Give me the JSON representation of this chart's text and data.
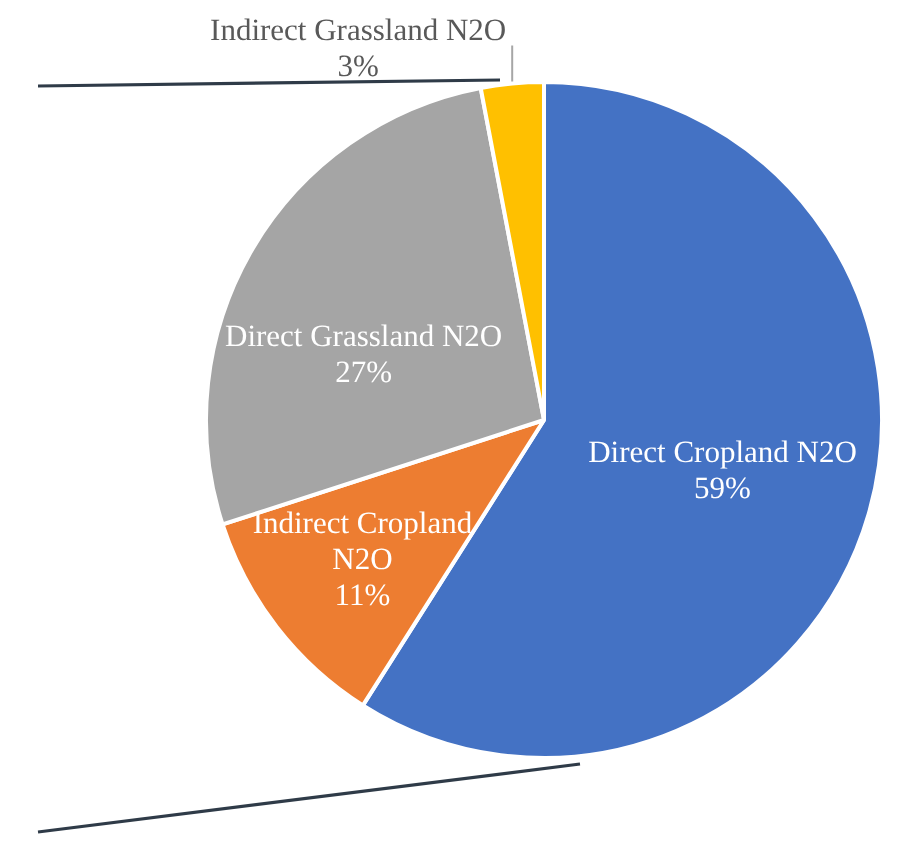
{
  "chart_data": {
    "type": "pie",
    "categories": [
      "Direct Cropland N2O",
      "Indirect Cropland N2O",
      "Direct Grassland N2O",
      "Indirect Grassland N2O"
    ],
    "values": [
      59,
      11,
      27,
      3
    ],
    "colors": [
      "#4472c4",
      "#ed7d31",
      "#a5a5a5",
      "#ffc000"
    ],
    "value_labels": [
      "59%",
      "11%",
      "27%",
      "3%"
    ]
  }
}
